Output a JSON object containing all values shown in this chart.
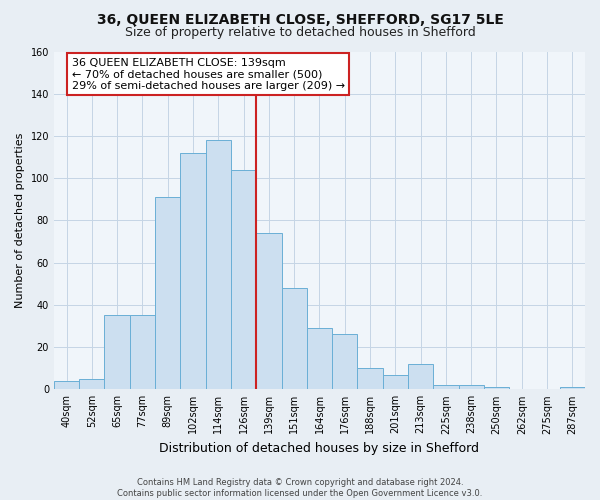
{
  "title": "36, QUEEN ELIZABETH CLOSE, SHEFFORD, SG17 5LE",
  "subtitle": "Size of property relative to detached houses in Shefford",
  "xlabel": "Distribution of detached houses by size in Shefford",
  "ylabel": "Number of detached properties",
  "bar_labels": [
    "40sqm",
    "52sqm",
    "65sqm",
    "77sqm",
    "89sqm",
    "102sqm",
    "114sqm",
    "126sqm",
    "139sqm",
    "151sqm",
    "164sqm",
    "176sqm",
    "188sqm",
    "201sqm",
    "213sqm",
    "225sqm",
    "238sqm",
    "250sqm",
    "262sqm",
    "275sqm",
    "287sqm"
  ],
  "bar_heights": [
    4,
    5,
    35,
    35,
    91,
    112,
    118,
    104,
    74,
    48,
    29,
    26,
    10,
    7,
    12,
    2,
    2,
    1,
    0,
    0,
    1
  ],
  "bar_color": "#ccdff0",
  "bar_edge_color": "#6aafd6",
  "vline_color": "#cc2222",
  "annotation_title": "36 QUEEN ELIZABETH CLOSE: 139sqm",
  "annotation_line1": "← 70% of detached houses are smaller (500)",
  "annotation_line2": "29% of semi-detached houses are larger (209) →",
  "annotation_box_facecolor": "#ffffff",
  "annotation_box_edgecolor": "#cc2222",
  "ylim": [
    0,
    160
  ],
  "yticks": [
    0,
    20,
    40,
    60,
    80,
    100,
    120,
    140,
    160
  ],
  "footer_line1": "Contains HM Land Registry data © Crown copyright and database right 2024.",
  "footer_line2": "Contains public sector information licensed under the Open Government Licence v3.0.",
  "fig_facecolor": "#e8eef4",
  "axes_facecolor": "#f0f5fa",
  "grid_color": "#c5d5e5",
  "title_fontsize": 10,
  "subtitle_fontsize": 9,
  "xlabel_fontsize": 9,
  "ylabel_fontsize": 8,
  "tick_fontsize": 7,
  "ann_fontsize": 8,
  "footer_fontsize": 6
}
